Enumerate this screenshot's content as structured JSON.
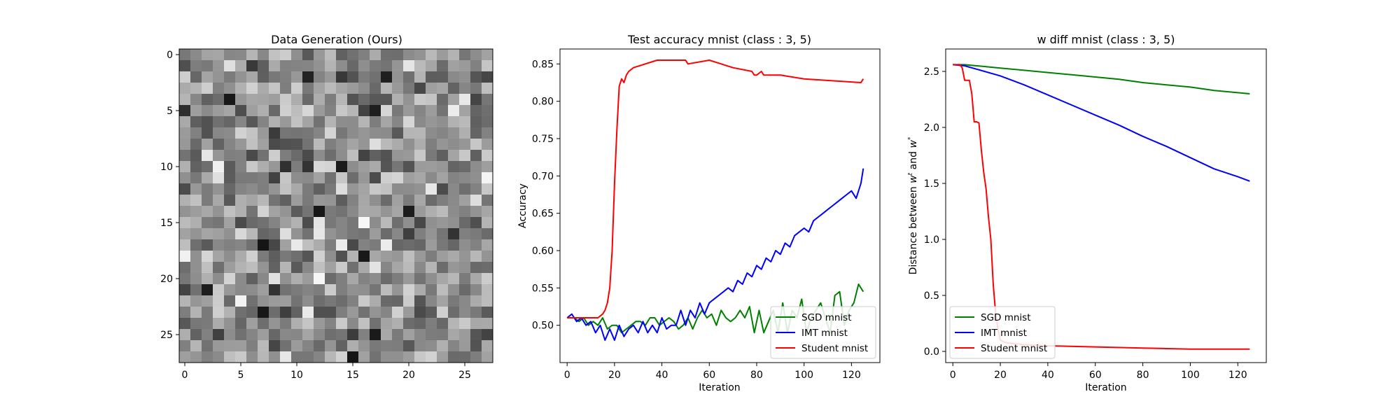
{
  "chart_data": [
    {
      "type": "heatmap",
      "title": "Data Generation (Ours)",
      "colormap": "gray",
      "size": [
        28,
        28
      ],
      "xticks": [
        0,
        5,
        10,
        15,
        20,
        25
      ],
      "yticks": [
        0,
        5,
        10,
        15,
        20,
        25
      ],
      "dark_cells": [
        [
          2,
          11
        ],
        [
          2,
          18
        ],
        [
          4,
          4
        ],
        [
          5,
          17
        ],
        [
          10,
          14
        ],
        [
          14,
          12
        ],
        [
          14,
          20
        ],
        [
          17,
          7
        ],
        [
          18,
          16
        ],
        [
          21,
          2
        ],
        [
          23,
          7
        ],
        [
          25,
          17
        ],
        [
          27,
          15
        ]
      ],
      "bright_cells": [
        [
          4,
          25
        ],
        [
          9,
          2
        ],
        [
          10,
          3
        ],
        [
          12,
          22
        ],
        [
          11,
          27
        ],
        [
          15,
          16
        ],
        [
          17,
          14
        ],
        [
          18,
          0
        ],
        [
          20,
          12
        ],
        [
          22,
          5
        ],
        [
          23,
          11
        ],
        [
          5,
          24
        ]
      ]
    },
    {
      "type": "line",
      "title": "Test accuracy mnist (class : 3, 5)",
      "xlabel": "Iteration",
      "ylabel": "Accuracy",
      "xlim": [
        -3,
        132
      ],
      "ylim": [
        0.45,
        0.87
      ],
      "xticks": [
        0,
        20,
        40,
        60,
        80,
        100,
        120
      ],
      "yticks": [
        0.5,
        0.55,
        0.6,
        0.65,
        0.7,
        0.75,
        0.8,
        0.85
      ],
      "legend_loc": "lower right",
      "series": [
        {
          "name": "SGD mnist",
          "color": "#008000",
          "x": [
            0,
            3,
            5,
            7,
            9,
            11,
            13,
            15,
            17,
            19,
            21,
            23,
            25,
            27,
            29,
            31,
            33,
            35,
            37,
            39,
            41,
            43,
            45,
            47,
            49,
            51,
            53,
            55,
            57,
            59,
            61,
            63,
            65,
            67,
            69,
            71,
            73,
            75,
            77,
            79,
            81,
            83,
            85,
            87,
            89,
            91,
            93,
            95,
            97,
            99,
            101,
            103,
            105,
            107,
            109,
            111,
            113,
            115,
            117,
            119,
            121,
            123,
            125
          ],
          "y": [
            0.51,
            0.51,
            0.505,
            0.51,
            0.5,
            0.505,
            0.5,
            0.51,
            0.495,
            0.5,
            0.5,
            0.49,
            0.495,
            0.5,
            0.505,
            0.505,
            0.5,
            0.51,
            0.51,
            0.5,
            0.505,
            0.51,
            0.505,
            0.495,
            0.5,
            0.51,
            0.495,
            0.51,
            0.52,
            0.51,
            0.515,
            0.5,
            0.52,
            0.51,
            0.505,
            0.51,
            0.52,
            0.51,
            0.525,
            0.49,
            0.52,
            0.49,
            0.505,
            0.52,
            0.49,
            0.53,
            0.49,
            0.52,
            0.51,
            0.535,
            0.49,
            0.51,
            0.52,
            0.53,
            0.51,
            0.49,
            0.54,
            0.545,
            0.5,
            0.52,
            0.53,
            0.555,
            0.545
          ]
        },
        {
          "name": "IMT mnist",
          "color": "#0000ff",
          "x": [
            0,
            2,
            4,
            6,
            8,
            10,
            12,
            14,
            16,
            18,
            20,
            22,
            24,
            26,
            28,
            30,
            32,
            34,
            36,
            38,
            40,
            42,
            44,
            46,
            48,
            50,
            52,
            54,
            56,
            58,
            60,
            62,
            64,
            66,
            68,
            70,
            72,
            74,
            76,
            78,
            80,
            82,
            84,
            86,
            88,
            90,
            92,
            94,
            96,
            98,
            100,
            102,
            104,
            106,
            108,
            110,
            112,
            114,
            116,
            118,
            120,
            122,
            124,
            125
          ],
          "y": [
            0.51,
            0.515,
            0.505,
            0.51,
            0.5,
            0.505,
            0.49,
            0.5,
            0.48,
            0.495,
            0.48,
            0.5,
            0.485,
            0.495,
            0.5,
            0.49,
            0.505,
            0.49,
            0.5,
            0.49,
            0.51,
            0.495,
            0.5,
            0.5,
            0.52,
            0.5,
            0.52,
            0.51,
            0.53,
            0.515,
            0.53,
            0.535,
            0.54,
            0.545,
            0.55,
            0.545,
            0.56,
            0.555,
            0.57,
            0.565,
            0.58,
            0.575,
            0.59,
            0.585,
            0.6,
            0.595,
            0.61,
            0.605,
            0.62,
            0.625,
            0.63,
            0.625,
            0.64,
            0.645,
            0.65,
            0.655,
            0.66,
            0.665,
            0.67,
            0.675,
            0.68,
            0.67,
            0.69,
            0.71
          ]
        },
        {
          "name": "Student mnist",
          "color": "#ff0000",
          "x": [
            0,
            13,
            15,
            16,
            17,
            18,
            19,
            20,
            21,
            22,
            23,
            24,
            25,
            26,
            28,
            38,
            50,
            51,
            60,
            70,
            78,
            79,
            80,
            82,
            83,
            85,
            90,
            100,
            124,
            125
          ],
          "y": [
            0.51,
            0.51,
            0.515,
            0.52,
            0.53,
            0.55,
            0.6,
            0.69,
            0.76,
            0.82,
            0.83,
            0.825,
            0.835,
            0.84,
            0.845,
            0.855,
            0.855,
            0.85,
            0.855,
            0.845,
            0.84,
            0.835,
            0.835,
            0.84,
            0.835,
            0.835,
            0.835,
            0.83,
            0.825,
            0.83
          ]
        }
      ]
    },
    {
      "type": "line",
      "title": "w diff mnist (class : 3, 5)",
      "xlabel": "Iteration",
      "ylabel": "Distance between w^t and w^*",
      "xlim": [
        -3,
        132
      ],
      "ylim": [
        -0.1,
        2.7
      ],
      "xticks": [
        0,
        20,
        40,
        60,
        80,
        100,
        120
      ],
      "yticks": [
        0.0,
        0.5,
        1.0,
        1.5,
        2.0,
        2.5
      ],
      "legend_loc": "lower left",
      "series": [
        {
          "name": "SGD mnist",
          "color": "#008000",
          "x": [
            0,
            5,
            10,
            20,
            30,
            40,
            50,
            60,
            70,
            80,
            90,
            100,
            110,
            120,
            125
          ],
          "y": [
            2.56,
            2.56,
            2.55,
            2.53,
            2.51,
            2.49,
            2.47,
            2.45,
            2.43,
            2.4,
            2.38,
            2.36,
            2.33,
            2.31,
            2.3
          ]
        },
        {
          "name": "IMT mnist",
          "color": "#0000ff",
          "x": [
            0,
            5,
            10,
            20,
            30,
            40,
            50,
            60,
            70,
            80,
            90,
            100,
            110,
            120,
            125
          ],
          "y": [
            2.56,
            2.55,
            2.52,
            2.46,
            2.38,
            2.29,
            2.2,
            2.11,
            2.02,
            1.92,
            1.83,
            1.73,
            1.63,
            1.56,
            1.52
          ]
        },
        {
          "name": "Student mnist",
          "color": "#ff0000",
          "x": [
            0,
            3,
            4,
            5,
            6,
            7,
            8,
            9,
            10,
            11,
            12,
            13,
            14,
            15,
            16,
            17,
            18,
            19,
            20,
            22,
            25,
            30,
            40,
            60,
            80,
            100,
            125
          ],
          "y": [
            2.56,
            2.56,
            2.53,
            2.42,
            2.42,
            2.42,
            2.3,
            2.05,
            2.05,
            2.04,
            1.8,
            1.6,
            1.45,
            1.2,
            1.0,
            0.6,
            0.35,
            0.2,
            0.1,
            0.08,
            0.07,
            0.06,
            0.05,
            0.04,
            0.03,
            0.02,
            0.02
          ]
        }
      ]
    }
  ]
}
